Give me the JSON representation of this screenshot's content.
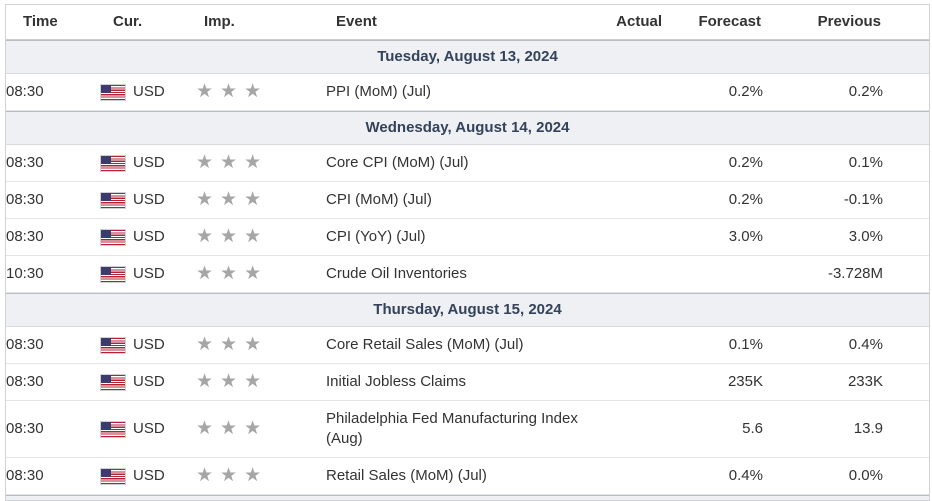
{
  "table": {
    "columns": [
      "Time",
      "Cur.",
      "Imp.",
      "Event",
      "Actual",
      "Forecast",
      "Previous"
    ],
    "groups": [
      {
        "date": "Tuesday, August 13, 2024",
        "rows": [
          {
            "time": "08:30",
            "flag": "us-flag-icon",
            "currency": "USD",
            "importance": 3,
            "event": "PPI (MoM) (Jul)",
            "actual": "",
            "forecast": "0.2%",
            "previous": "0.2%"
          }
        ]
      },
      {
        "date": "Wednesday, August 14, 2024",
        "rows": [
          {
            "time": "08:30",
            "flag": "us-flag-icon",
            "currency": "USD",
            "importance": 3,
            "event": "Core CPI (MoM) (Jul)",
            "actual": "",
            "forecast": "0.2%",
            "previous": "0.1%"
          },
          {
            "time": "08:30",
            "flag": "us-flag-icon",
            "currency": "USD",
            "importance": 3,
            "event": "CPI (MoM) (Jul)",
            "actual": "",
            "forecast": "0.2%",
            "previous": "-0.1%"
          },
          {
            "time": "08:30",
            "flag": "us-flag-icon",
            "currency": "USD",
            "importance": 3,
            "event": "CPI (YoY) (Jul)",
            "actual": "",
            "forecast": "3.0%",
            "previous": "3.0%"
          },
          {
            "time": "10:30",
            "flag": "us-flag-icon",
            "currency": "USD",
            "importance": 3,
            "event": "Crude Oil Inventories",
            "actual": "",
            "forecast": "",
            "previous": "-3.728M"
          }
        ]
      },
      {
        "date": "Thursday, August 15, 2024",
        "rows": [
          {
            "time": "08:30",
            "flag": "us-flag-icon",
            "currency": "USD",
            "importance": 3,
            "event": "Core Retail Sales (MoM) (Jul)",
            "actual": "",
            "forecast": "0.1%",
            "previous": "0.4%"
          },
          {
            "time": "08:30",
            "flag": "us-flag-icon",
            "currency": "USD",
            "importance": 3,
            "event": "Initial Jobless Claims",
            "actual": "",
            "forecast": "235K",
            "previous": "233K"
          },
          {
            "time": "08:30",
            "flag": "us-flag-icon",
            "currency": "USD",
            "importance": 3,
            "event": "Philadelphia Fed Manufacturing Index (Aug)",
            "actual": "",
            "forecast": "5.6",
            "previous": "13.9"
          },
          {
            "time": "08:30",
            "flag": "us-flag-icon",
            "currency": "USD",
            "importance": 3,
            "event": "Retail Sales (MoM) (Jul)",
            "actual": "",
            "forecast": "0.4%",
            "previous": "0.0%"
          }
        ]
      }
    ]
  },
  "colors": {
    "date_row_bg": "#eef0f3",
    "date_row_text": "#34435a",
    "header_text": "#333333",
    "body_text": "#333333",
    "star": "#a6a6a6",
    "flag_red": "#b22234",
    "flag_blue": "#3c3b6e",
    "border_outer": "#cfd2d7",
    "border_row": "#e3e5e9",
    "border_date": "#b9bdc3"
  },
  "icons": {
    "importance": "star-icon",
    "currency_flag": "us-flag-icon"
  }
}
